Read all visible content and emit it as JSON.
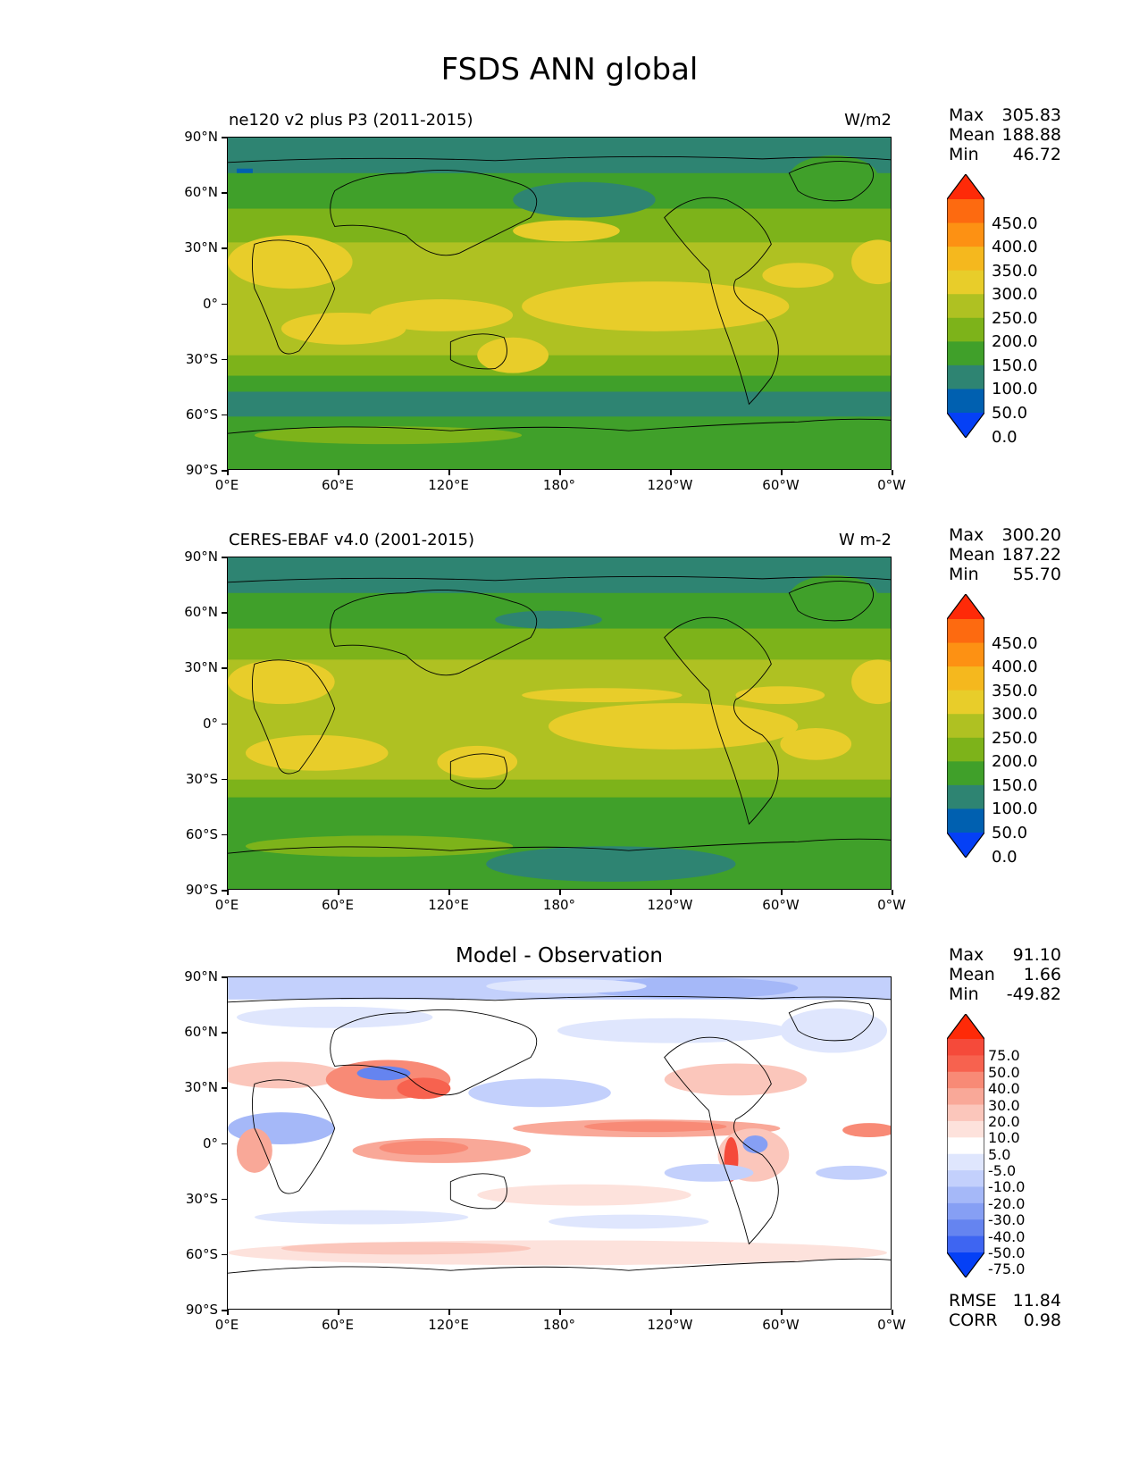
{
  "title": "FSDS ANN global",
  "panels": [
    {
      "left_title": "ne120 v2 plus P3 (2011-2015)",
      "right_title": "W/m2",
      "stats": [
        {
          "label": "Max",
          "value": "305.83"
        },
        {
          "label": "Mean",
          "value": "188.88"
        },
        {
          "label": "Min",
          "value": "46.72"
        }
      ],
      "colorbar": {
        "ticks": [
          "450.0",
          "400.0",
          "350.0",
          "300.0",
          "250.0",
          "200.0",
          "150.0",
          "100.0",
          "50.0",
          "0.0"
        ],
        "colors": [
          "#fe2a08",
          "#fd6a10",
          "#fd9113",
          "#f5b81e",
          "#e8cd2a",
          "#afc122",
          "#7db31a",
          "#40a02a",
          "#2e8472",
          "#0060b0",
          "#0540f6"
        ]
      }
    },
    {
      "left_title": "CERES-EBAF v4.0 (2001-2015)",
      "right_title": "W m-2",
      "stats": [
        {
          "label": "Max",
          "value": "300.20"
        },
        {
          "label": "Mean",
          "value": "187.22"
        },
        {
          "label": "Min",
          "value": "55.70"
        }
      ],
      "colorbar": {
        "ticks": [
          "450.0",
          "400.0",
          "350.0",
          "300.0",
          "250.0",
          "200.0",
          "150.0",
          "100.0",
          "50.0",
          "0.0"
        ],
        "colors": [
          "#fe2a08",
          "#fd6a10",
          "#fd9113",
          "#f5b81e",
          "#e8cd2a",
          "#afc122",
          "#7db31a",
          "#40a02a",
          "#2e8472",
          "#0060b0",
          "#0540f6"
        ]
      }
    },
    {
      "center_title": "Model - Observation",
      "stats": [
        {
          "label": "Max",
          "value": "91.10"
        },
        {
          "label": "Mean",
          "value": "1.66"
        },
        {
          "label": "Min",
          "value": "-49.82"
        }
      ],
      "colorbar": {
        "ticks": [
          "75.0",
          "50.0",
          "40.0",
          "30.0",
          "20.0",
          "10.0",
          "5.0",
          "-5.0",
          "-10.0",
          "-20.0",
          "-30.0",
          "-40.0",
          "-50.0",
          "-75.0"
        ],
        "colors": [
          "#fe2a08",
          "#f54a3a",
          "#f7624f",
          "#f88a76",
          "#f9a898",
          "#fbc6bb",
          "#fde2dc",
          "#ffffff",
          "#dfe6fd",
          "#c3d0fc",
          "#a5b8f8",
          "#869ff4",
          "#6584f0",
          "#3e65f2",
          "#0540f6"
        ]
      },
      "extra": [
        {
          "label": "RMSE",
          "value": "11.84"
        },
        {
          "label": "CORR",
          "value": "0.98"
        }
      ]
    }
  ],
  "axes": {
    "lat_labels": [
      "90°N",
      "60°N",
      "30°N",
      "0°",
      "30°S",
      "60°S",
      "90°S"
    ],
    "lon_labels": [
      "0°E",
      "60°E",
      "120°E",
      "180°",
      "120°W",
      "60°W",
      "0°W"
    ]
  }
}
